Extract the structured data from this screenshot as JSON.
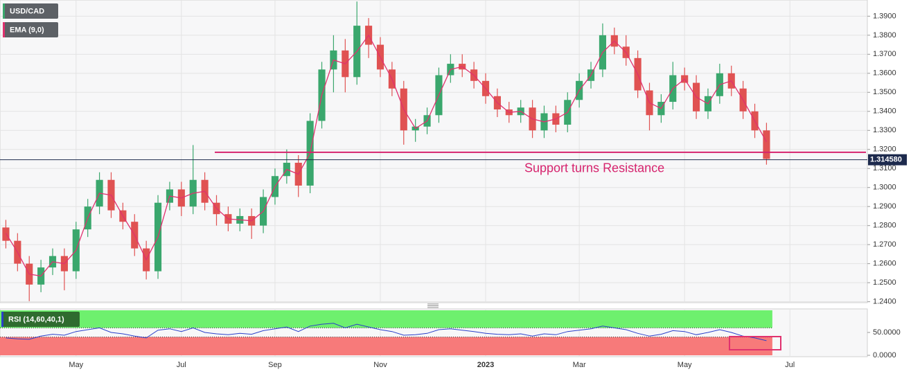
{
  "chart_data": [
    {
      "type": "candlestick",
      "symbol": "USD/CAD",
      "categories": [
        null,
        null,
        null,
        null,
        null,
        null,
        "May",
        null,
        null,
        null,
        null,
        null,
        null,
        null,
        null,
        "Jul",
        null,
        null,
        null,
        null,
        null,
        null,
        null,
        "Sep",
        null,
        null,
        null,
        null,
        null,
        null,
        null,
        null,
        "Nov",
        null,
        null,
        null,
        null,
        null,
        null,
        null,
        null,
        "2023",
        null,
        null,
        null,
        null,
        null,
        null,
        null,
        "Mar",
        null,
        null,
        null,
        null,
        null,
        null,
        null,
        null,
        "May",
        null,
        null,
        null,
        null,
        null,
        null,
        null,
        null,
        "Jul",
        null,
        null,
        null,
        null,
        null,
        null
      ],
      "open": [
        1.279,
        1.272,
        1.26,
        1.249,
        1.258,
        1.264,
        1.256,
        1.278,
        1.29,
        1.304,
        1.288,
        1.282,
        1.268,
        1.256,
        1.292,
        1.299,
        1.29,
        1.304,
        1.292,
        1.286,
        1.281,
        1.285,
        1.28,
        1.295,
        1.306,
        1.313,
        1.301,
        1.335,
        1.362,
        1.372,
        1.358,
        1.385,
        1.375,
        1.362,
        1.352,
        1.33,
        1.332,
        1.338,
        1.359,
        1.365,
        1.362,
        1.356,
        1.348,
        1.341,
        1.338,
        1.342,
        1.33,
        1.339,
        1.333,
        1.346,
        1.356,
        1.362,
        1.38,
        1.374,
        1.368,
        1.351,
        1.338,
        1.345,
        1.359,
        1.355,
        1.34,
        1.348,
        1.36,
        1.352,
        1.34,
        1.33,
        null,
        null,
        null,
        null,
        null,
        null,
        null,
        null
      ],
      "high": [
        1.283,
        1.276,
        1.264,
        1.262,
        1.268,
        1.268,
        1.282,
        1.294,
        1.308,
        1.308,
        1.292,
        1.286,
        1.272,
        1.296,
        1.303,
        1.303,
        1.3223,
        1.308,
        1.296,
        1.29,
        1.289,
        1.289,
        1.299,
        1.31,
        1.32,
        1.317,
        1.339,
        1.366,
        1.38,
        1.378,
        1.3977,
        1.389,
        1.379,
        1.366,
        1.356,
        1.336,
        1.342,
        1.363,
        1.37,
        1.37,
        1.366,
        1.36,
        1.352,
        1.345,
        1.346,
        1.346,
        1.343,
        1.343,
        1.35,
        1.36,
        1.366,
        1.3862,
        1.384,
        1.38,
        1.372,
        1.355,
        1.349,
        1.366,
        1.363,
        1.359,
        1.352,
        1.365,
        1.364,
        1.356,
        1.344,
        1.334,
        null,
        null,
        null,
        null,
        null,
        null,
        null,
        null
      ],
      "low": [
        1.268,
        1.256,
        1.2403,
        1.245,
        1.254,
        1.246,
        1.252,
        1.274,
        1.286,
        1.284,
        1.278,
        1.264,
        1.2517,
        1.252,
        1.288,
        1.285,
        1.286,
        1.288,
        1.28,
        1.277,
        1.277,
        1.273,
        1.276,
        1.291,
        1.302,
        1.295,
        1.297,
        1.331,
        1.35,
        1.35,
        1.354,
        1.368,
        1.358,
        1.348,
        1.3225,
        1.324,
        1.328,
        1.334,
        1.355,
        1.358,
        1.352,
        1.344,
        1.337,
        1.334,
        1.334,
        1.326,
        1.326,
        1.329,
        1.329,
        1.342,
        1.352,
        1.358,
        1.37,
        1.364,
        1.347,
        1.33,
        1.334,
        1.341,
        1.351,
        1.336,
        1.336,
        1.344,
        1.348,
        1.336,
        1.326,
        1.312,
        null,
        null,
        null,
        null,
        null,
        null,
        null,
        null
      ],
      "close": [
        1.272,
        1.26,
        1.249,
        1.258,
        1.264,
        1.256,
        1.278,
        1.29,
        1.304,
        1.288,
        1.282,
        1.268,
        1.256,
        1.292,
        1.299,
        1.29,
        1.304,
        1.292,
        1.286,
        1.281,
        1.285,
        1.28,
        1.295,
        1.306,
        1.313,
        1.301,
        1.335,
        1.362,
        1.372,
        1.358,
        1.385,
        1.375,
        1.362,
        1.352,
        1.33,
        1.332,
        1.338,
        1.359,
        1.365,
        1.362,
        1.356,
        1.348,
        1.341,
        1.338,
        1.342,
        1.33,
        1.339,
        1.333,
        1.346,
        1.356,
        1.362,
        1.38,
        1.374,
        1.368,
        1.351,
        1.338,
        1.345,
        1.359,
        1.355,
        1.34,
        1.348,
        1.36,
        1.352,
        1.34,
        1.33,
        1.315,
        null,
        null,
        null,
        null,
        null,
        null,
        null,
        null
      ],
      "up_color": "#3aa76d",
      "down_color": "#e05252",
      "ema": {
        "name": "EMA (9,0)",
        "color": "#e0316e",
        "values": [
          1.276,
          1.266,
          1.2545,
          1.2535,
          1.261,
          1.26,
          1.267,
          1.284,
          1.297,
          1.296,
          1.285,
          1.275,
          1.262,
          1.274,
          1.2955,
          1.2945,
          1.297,
          1.298,
          1.289,
          1.2835,
          1.283,
          1.2825,
          1.2875,
          1.3005,
          1.3095,
          1.307,
          1.318,
          1.3485,
          1.367,
          1.365,
          1.3715,
          1.38,
          1.3685,
          1.357,
          1.341,
          1.331,
          1.335,
          1.3485,
          1.362,
          1.3635,
          1.359,
          1.352,
          1.3445,
          1.3395,
          1.34,
          1.336,
          1.3345,
          1.336,
          1.3395,
          1.351,
          1.359,
          1.371,
          1.377,
          1.371,
          1.3595,
          1.3445,
          1.3415,
          1.352,
          1.357,
          1.3475,
          1.344,
          1.354,
          1.356,
          1.346,
          1.335,
          1.324,
          null,
          null,
          null,
          null,
          null,
          null,
          null,
          null
        ]
      },
      "ylim": [
        1.2395,
        1.3985
      ],
      "yticks": [
        {
          "value": 1.24,
          "label": "1.2400"
        },
        {
          "value": 1.25,
          "label": "1.2500"
        },
        {
          "value": 1.26,
          "label": "1.2600"
        },
        {
          "value": 1.27,
          "label": "1.2700"
        },
        {
          "value": 1.28,
          "label": "1.2800"
        },
        {
          "value": 1.29,
          "label": "1.2900"
        },
        {
          "value": 1.3,
          "label": "1.3000"
        },
        {
          "value": 1.31,
          "label": "1.3100"
        },
        {
          "value": 1.32,
          "label": "1.3200"
        },
        {
          "value": 1.33,
          "label": "1.3300"
        },
        {
          "value": 1.34,
          "label": "1.3400"
        },
        {
          "value": 1.35,
          "label": "1.3500"
        },
        {
          "value": 1.36,
          "label": "1.3600"
        },
        {
          "value": 1.37,
          "label": "1.3700"
        },
        {
          "value": 1.38,
          "label": "1.3800"
        },
        {
          "value": 1.39,
          "label": "1.3900"
        }
      ],
      "grid": true,
      "last_price": {
        "value": 1.31458,
        "label": "1.314580"
      },
      "resistance": {
        "value": 1.3185,
        "label": "Support turns Resistance",
        "color": "#d6246e"
      }
    },
    {
      "type": "line",
      "name": "RSI (14,60,40,1)",
      "color": "#2a3fc9",
      "values": [
        38,
        36,
        35,
        42,
        46,
        44,
        52,
        56,
        60,
        50,
        47,
        42,
        38,
        55,
        58,
        52,
        60,
        50,
        47,
        45,
        48,
        46,
        54,
        58,
        62,
        52,
        64,
        68,
        70,
        60,
        68,
        62,
        56,
        52,
        44,
        45,
        48,
        56,
        58,
        55,
        52,
        48,
        46,
        45,
        47,
        42,
        47,
        45,
        52,
        55,
        58,
        64,
        60,
        56,
        48,
        42,
        46,
        54,
        52,
        45,
        50,
        56,
        50,
        42,
        38,
        32,
        null,
        null,
        null,
        null,
        null,
        null,
        null,
        null
      ],
      "ylim": [
        0,
        100
      ],
      "yticks": [
        {
          "value": 50,
          "label": "50.0000"
        },
        {
          "value": 0,
          "label": "0.0000"
        }
      ],
      "upper": 60,
      "lower": 40,
      "upper_color": "#6ef06e",
      "lower_color": "#f77a7a"
    }
  ]
}
